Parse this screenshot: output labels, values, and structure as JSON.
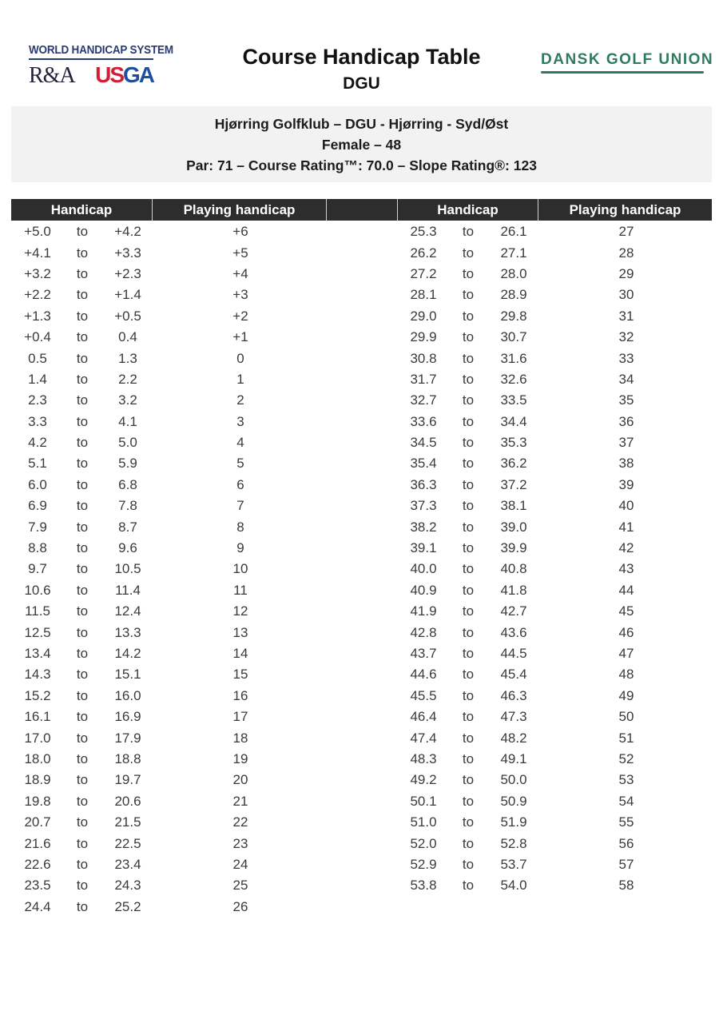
{
  "header": {
    "whs_logo": {
      "line1": "WORLD HANDICAP SYSTEM",
      "ra": "R&A",
      "usga_us": "US",
      "usga_ga": "GA"
    },
    "title": "Course Handicap Table",
    "subtitle": "DGU",
    "dgu_logo": "DANSK GOLF UNION"
  },
  "info": {
    "line1": "Hjørring Golfklub – DGU - Hjørring - Syd/Øst",
    "line2": "Female – 48",
    "line3": "Par: 71 – Course Rating™: 70.0 – Slope Rating®: 123"
  },
  "table": {
    "headers": [
      "Handicap",
      "Playing handicap",
      "",
      "Handicap",
      "Playing handicap"
    ],
    "separator_word": "to",
    "left_rows": [
      [
        "+5.0",
        "+4.2",
        "+6"
      ],
      [
        "+4.1",
        "+3.3",
        "+5"
      ],
      [
        "+3.2",
        "+2.3",
        "+4"
      ],
      [
        "+2.2",
        "+1.4",
        "+3"
      ],
      [
        "+1.3",
        "+0.5",
        "+2"
      ],
      [
        "+0.4",
        "0.4",
        "+1"
      ],
      [
        "0.5",
        "1.3",
        "0"
      ],
      [
        "1.4",
        "2.2",
        "1"
      ],
      [
        "2.3",
        "3.2",
        "2"
      ],
      [
        "3.3",
        "4.1",
        "3"
      ],
      [
        "4.2",
        "5.0",
        "4"
      ],
      [
        "5.1",
        "5.9",
        "5"
      ],
      [
        "6.0",
        "6.8",
        "6"
      ],
      [
        "6.9",
        "7.8",
        "7"
      ],
      [
        "7.9",
        "8.7",
        "8"
      ],
      [
        "8.8",
        "9.6",
        "9"
      ],
      [
        "9.7",
        "10.5",
        "10"
      ],
      [
        "10.6",
        "11.4",
        "11"
      ],
      [
        "11.5",
        "12.4",
        "12"
      ],
      [
        "12.5",
        "13.3",
        "13"
      ],
      [
        "13.4",
        "14.2",
        "14"
      ],
      [
        "14.3",
        "15.1",
        "15"
      ],
      [
        "15.2",
        "16.0",
        "16"
      ],
      [
        "16.1",
        "16.9",
        "17"
      ],
      [
        "17.0",
        "17.9",
        "18"
      ],
      [
        "18.0",
        "18.8",
        "19"
      ],
      [
        "18.9",
        "19.7",
        "20"
      ],
      [
        "19.8",
        "20.6",
        "21"
      ],
      [
        "20.7",
        "21.5",
        "22"
      ],
      [
        "21.6",
        "22.5",
        "23"
      ],
      [
        "22.6",
        "23.4",
        "24"
      ],
      [
        "23.5",
        "24.3",
        "25"
      ],
      [
        "24.4",
        "25.2",
        "26"
      ]
    ],
    "right_rows": [
      [
        "25.3",
        "26.1",
        "27"
      ],
      [
        "26.2",
        "27.1",
        "28"
      ],
      [
        "27.2",
        "28.0",
        "29"
      ],
      [
        "28.1",
        "28.9",
        "30"
      ],
      [
        "29.0",
        "29.8",
        "31"
      ],
      [
        "29.9",
        "30.7",
        "32"
      ],
      [
        "30.8",
        "31.6",
        "33"
      ],
      [
        "31.7",
        "32.6",
        "34"
      ],
      [
        "32.7",
        "33.5",
        "35"
      ],
      [
        "33.6",
        "34.4",
        "36"
      ],
      [
        "34.5",
        "35.3",
        "37"
      ],
      [
        "35.4",
        "36.2",
        "38"
      ],
      [
        "36.3",
        "37.2",
        "39"
      ],
      [
        "37.3",
        "38.1",
        "40"
      ],
      [
        "38.2",
        "39.0",
        "41"
      ],
      [
        "39.1",
        "39.9",
        "42"
      ],
      [
        "40.0",
        "40.8",
        "43"
      ],
      [
        "40.9",
        "41.8",
        "44"
      ],
      [
        "41.9",
        "42.7",
        "45"
      ],
      [
        "42.8",
        "43.6",
        "46"
      ],
      [
        "43.7",
        "44.5",
        "47"
      ],
      [
        "44.6",
        "45.4",
        "48"
      ],
      [
        "45.5",
        "46.3",
        "49"
      ],
      [
        "46.4",
        "47.3",
        "50"
      ],
      [
        "47.4",
        "48.2",
        "51"
      ],
      [
        "48.3",
        "49.1",
        "52"
      ],
      [
        "49.2",
        "50.0",
        "53"
      ],
      [
        "50.1",
        "50.9",
        "54"
      ],
      [
        "51.0",
        "51.9",
        "55"
      ],
      [
        "52.0",
        "52.8",
        "56"
      ],
      [
        "52.9",
        "53.7",
        "57"
      ],
      [
        "53.8",
        "54.0",
        "58"
      ]
    ]
  },
  "colors": {
    "table_header_bg": "#2d2d2d",
    "table_header_text": "#ffffff",
    "info_bar_bg": "#f2f2f2",
    "dgu_green": "#2e7b5d",
    "usga_red": "#d31f35",
    "usga_blue": "#1d4f9e",
    "whs_navy": "#2b3a72",
    "body_text": "#3a3a3a"
  }
}
